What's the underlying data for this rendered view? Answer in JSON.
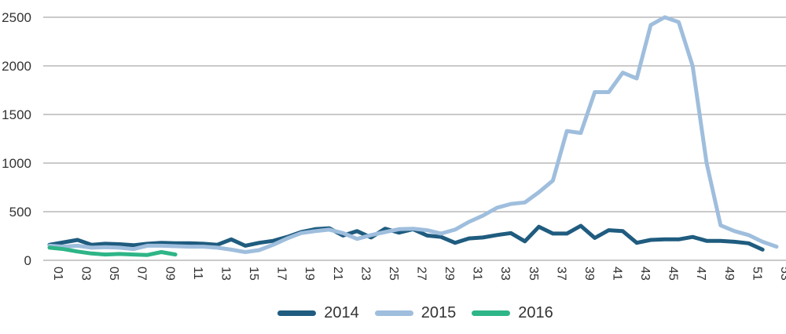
{
  "chart_data": {
    "type": "line",
    "title": "",
    "xlabel": "",
    "ylabel": "",
    "x_unit": "week-number",
    "x_tick_labels": [
      "01",
      "03",
      "05",
      "07",
      "09",
      "11",
      "13",
      "15",
      "17",
      "19",
      "21",
      "23",
      "25",
      "27",
      "29",
      "31",
      "33",
      "35",
      "37",
      "39",
      "41",
      "43",
      "45",
      "47",
      "49",
      "51",
      "53"
    ],
    "x_tick_weeks": [
      1,
      3,
      5,
      7,
      9,
      11,
      13,
      15,
      17,
      19,
      21,
      23,
      25,
      27,
      29,
      31,
      33,
      35,
      37,
      39,
      41,
      43,
      45,
      47,
      49,
      51,
      53
    ],
    "y_ticks": [
      0,
      500,
      1000,
      1500,
      2000,
      2500
    ],
    "ylim": [
      0,
      2500
    ],
    "xlim_weeks": [
      1,
      53
    ],
    "grid": "horizontal",
    "legend_position": "bottom",
    "series": [
      {
        "name": "2014",
        "color": "#1F5C7F",
        "start_week": 1,
        "values": [
          160,
          185,
          210,
          160,
          170,
          165,
          155,
          170,
          180,
          175,
          175,
          170,
          160,
          215,
          150,
          180,
          200,
          240,
          290,
          320,
          330,
          255,
          300,
          235,
          325,
          285,
          320,
          255,
          240,
          180,
          225,
          235,
          260,
          280,
          195,
          345,
          275,
          275,
          355,
          230,
          310,
          300,
          180,
          210,
          215,
          215,
          240,
          200,
          200,
          190,
          175,
          110
        ]
      },
      {
        "name": "2015",
        "color": "#9FBEDD",
        "start_week": 1,
        "values": [
          150,
          140,
          150,
          130,
          135,
          130,
          115,
          150,
          150,
          145,
          140,
          140,
          130,
          110,
          85,
          105,
          160,
          225,
          280,
          300,
          315,
          280,
          220,
          260,
          290,
          320,
          325,
          310,
          275,
          315,
          395,
          460,
          540,
          580,
          595,
          700,
          820,
          1330,
          1310,
          1730,
          1730,
          1930,
          1870,
          2420,
          2500,
          2450,
          2000,
          1000,
          360,
          300,
          260,
          190,
          140
        ]
      },
      {
        "name": "2016",
        "color": "#2EB588",
        "start_week": 1,
        "values": [
          130,
          115,
          90,
          70,
          60,
          65,
          60,
          55,
          85,
          60
        ]
      }
    ]
  },
  "style": {
    "gridline_color": "#ABABAB",
    "axis_text_color": "#333333"
  }
}
